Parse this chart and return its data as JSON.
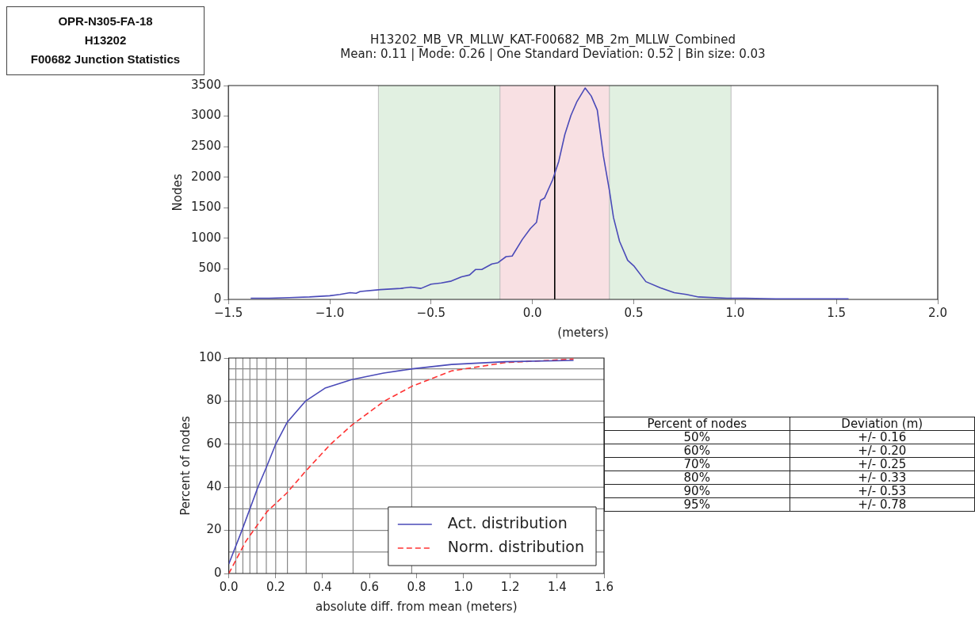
{
  "chart_data": [
    {
      "type": "other",
      "annotations": [
        "OPR-N305-FA-18",
        "H13202",
        "F00682 Junction Statistics"
      ]
    },
    {
      "type": "line",
      "title": "H13202_MB_VR_MLLW_KAT-F00682_MB_2m_MLLW_Combined",
      "subtitle": "Mean: 0.11 | Mode: 0.26 | One Standard Deviation: 0.52 | Bin size: 0.03",
      "xlabel": "(meters)",
      "ylabel": "Nodes",
      "x": [
        -1.39,
        -1.3,
        -1.2,
        -1.1,
        -1.0,
        -0.95,
        -0.9,
        -0.87,
        -0.85,
        -0.75,
        -0.65,
        -0.6,
        -0.55,
        -0.5,
        -0.45,
        -0.4,
        -0.35,
        -0.31,
        -0.28,
        -0.25,
        -0.2,
        -0.17,
        -0.13,
        -0.1,
        -0.05,
        -0.01,
        0.02,
        0.04,
        0.06,
        0.1,
        0.13,
        0.16,
        0.19,
        0.22,
        0.26,
        0.29,
        0.32,
        0.35,
        0.38,
        0.4,
        0.43,
        0.47,
        0.5,
        0.56,
        0.63,
        0.7,
        0.76,
        0.82,
        0.96,
        1.05,
        1.2,
        1.4,
        1.56
      ],
      "series": [
        {
          "color": "#4a4ab8",
          "values": [
            20,
            20,
            30,
            40,
            60,
            80,
            110,
            100,
            130,
            160,
            180,
            200,
            180,
            250,
            270,
            300,
            370,
            400,
            490,
            490,
            580,
            600,
            700,
            710,
            980,
            1160,
            1260,
            1620,
            1660,
            1960,
            2260,
            2700,
            3010,
            3240,
            3460,
            3330,
            3100,
            2350,
            1780,
            1340,
            950,
            640,
            550,
            290,
            190,
            110,
            80,
            40,
            20,
            20,
            10,
            10,
            10
          ]
        }
      ],
      "xlim": [
        -1.5,
        2.0
      ],
      "xticks": [
        {
          "value": -1.5,
          "label": "−1.5"
        },
        {
          "value": -1.0,
          "label": "−1.0"
        },
        {
          "value": -0.5,
          "label": "−0.5"
        },
        {
          "value": 0,
          "label": "0.0"
        },
        {
          "value": 0.5,
          "label": "0.5"
        },
        {
          "value": 1.0,
          "label": "1.0"
        },
        {
          "value": 1.5,
          "label": "1.5"
        },
        {
          "value": 2.0,
          "label": "2.0"
        }
      ],
      "ylim": [
        0,
        3500
      ],
      "yticks": [
        0,
        500,
        1000,
        1500,
        2000,
        2500,
        3000,
        3500
      ],
      "bands": [
        {
          "axis": "x",
          "from": -0.76,
          "to": 0.98,
          "color": "#e1f0e1"
        },
        {
          "axis": "x",
          "from": -0.16,
          "to": 0.38,
          "color": "#f8e0e3"
        }
      ],
      "ref_lines": [
        {
          "axis": "x",
          "value": 0.11,
          "color": "#000000"
        }
      ]
    },
    {
      "type": "line",
      "xlabel": "absolute diff. from mean (meters)",
      "ylabel": "Percent of nodes",
      "legend": "lower right",
      "series": [
        {
          "name": "Act. distribution",
          "color": "#4a4ab8",
          "line_style": "solid",
          "x": [
            0,
            0.056,
            0.124,
            0.163,
            0.2,
            0.248,
            0.327,
            0.41,
            0.524,
            0.66,
            0.783,
            0.95,
            1.18,
            1.47
          ],
          "values": [
            4.4,
            20,
            40,
            50,
            60,
            70,
            80,
            86,
            90,
            93,
            95,
            97,
            98.3,
            98.9
          ]
        },
        {
          "name": "Norm. distribution",
          "color": "#ff3333",
          "line_style": "dashed",
          "x": [
            0,
            0.073,
            0.163,
            0.248,
            0.327,
            0.434,
            0.524,
            0.66,
            0.783,
            0.95,
            1.18,
            1.47
          ],
          "values": [
            0,
            15,
            28.7,
            37.4,
            47.4,
            60,
            68.8,
            79.8,
            87,
            94,
            97.9,
            99.5
          ]
        }
      ],
      "xlim": [
        0,
        1.6
      ],
      "xticks": [
        {
          "value": 0,
          "label": "0.0"
        },
        {
          "value": 0.2,
          "label": "0.2"
        },
        {
          "value": 0.4,
          "label": "0.4"
        },
        {
          "value": 0.6,
          "label": "0.6"
        },
        {
          "value": 0.8,
          "label": "0.8"
        },
        {
          "value": 1.0,
          "label": "1.0"
        },
        {
          "value": 1.2,
          "label": "1.2"
        },
        {
          "value": 1.4,
          "label": "1.4"
        },
        {
          "value": 1.6,
          "label": "1.6"
        }
      ],
      "ylim": [
        0,
        100
      ],
      "yticks": [
        0,
        20,
        40,
        60,
        80,
        100
      ],
      "ref_lines": [
        {
          "axis": "x",
          "value": 0.03
        },
        {
          "axis": "x",
          "value": 0.06
        },
        {
          "axis": "x",
          "value": 0.09
        },
        {
          "axis": "x",
          "value": 0.12
        },
        {
          "axis": "x",
          "value": 0.16
        },
        {
          "axis": "x",
          "value": 0.2
        },
        {
          "axis": "x",
          "value": 0.25
        },
        {
          "axis": "x",
          "value": 0.33
        },
        {
          "axis": "x",
          "value": 0.53
        },
        {
          "axis": "x",
          "value": 0.78
        },
        {
          "axis": "y",
          "value": 10
        },
        {
          "axis": "y",
          "value": 20
        },
        {
          "axis": "y",
          "value": 30
        },
        {
          "axis": "y",
          "value": 40
        },
        {
          "axis": "y",
          "value": 50
        },
        {
          "axis": "y",
          "value": 60
        },
        {
          "axis": "y",
          "value": 70
        },
        {
          "axis": "y",
          "value": 80
        },
        {
          "axis": "y",
          "value": 90
        },
        {
          "axis": "y",
          "value": 95
        }
      ]
    },
    {
      "type": "other",
      "annotations": [
        "Percent of nodes",
        "Deviation (m)",
        "50%",
        "+/- 0.16",
        "60%",
        "+/- 0.20",
        "70%",
        "+/- 0.25",
        "80%",
        "+/- 0.33",
        "90%",
        "+/- 0.53",
        "95%",
        "+/- 0.78"
      ]
    }
  ]
}
